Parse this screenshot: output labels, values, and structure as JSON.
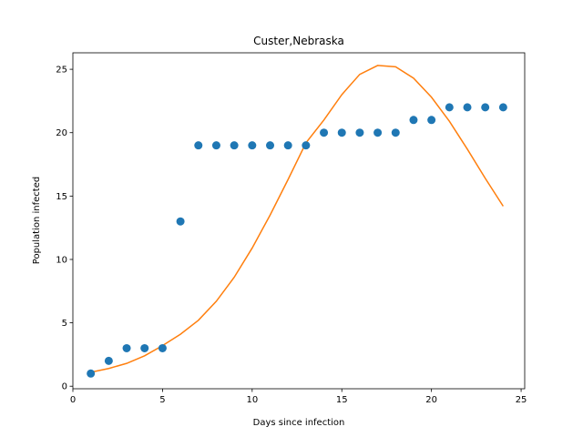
{
  "chart_data": {
    "type": "scatter",
    "title": "Custer,Nebraska",
    "xlabel": "Days since infection",
    "ylabel": "Population infected",
    "xlim": [
      0,
      25.2
    ],
    "ylim": [
      -0.2,
      26.3
    ],
    "xticks": [
      0,
      5,
      10,
      15,
      20,
      25
    ],
    "yticks": [
      0,
      5,
      10,
      15,
      20,
      25
    ],
    "grid": false,
    "series": [
      {
        "kind": "scatter",
        "color": "#1f77b4",
        "x": [
          1,
          2,
          3,
          4,
          5,
          6,
          7,
          8,
          9,
          10,
          11,
          12,
          13,
          14,
          15,
          16,
          17,
          18,
          19,
          20,
          21,
          22,
          23,
          24
        ],
        "y": [
          1,
          2,
          3,
          3,
          3,
          13,
          19,
          19,
          19,
          19,
          19,
          19,
          19,
          20,
          20,
          20,
          20,
          20,
          21,
          21,
          22,
          22,
          22,
          22
        ]
      },
      {
        "kind": "line",
        "color": "#ff7f0e",
        "x": [
          1,
          2,
          3,
          4,
          5,
          6,
          7,
          8,
          9,
          10,
          11,
          12,
          13,
          14,
          15,
          16,
          17,
          18,
          19,
          20,
          21,
          22,
          23,
          24
        ],
        "y": [
          1.1,
          1.4,
          1.8,
          2.4,
          3.2,
          4.1,
          5.2,
          6.7,
          8.6,
          10.9,
          13.5,
          16.3,
          19.2,
          21.0,
          23.0,
          24.6,
          25.3,
          25.2,
          24.3,
          22.8,
          20.9,
          18.7,
          16.4,
          14.2
        ]
      }
    ]
  }
}
